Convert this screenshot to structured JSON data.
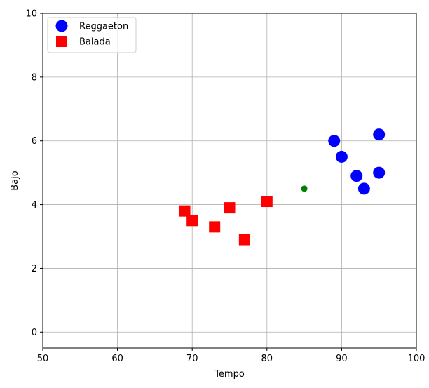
{
  "chart_data": {
    "type": "scatter",
    "title": "",
    "xlabel": "Tempo",
    "ylabel": "Bajo",
    "xlim": [
      50,
      100
    ],
    "ylim": [
      -0.5,
      10
    ],
    "xticks": [
      50,
      60,
      70,
      80,
      90,
      100
    ],
    "yticks": [
      0,
      2,
      4,
      6,
      8,
      10
    ],
    "grid": true,
    "legend_position": "top-left",
    "series": [
      {
        "name": "Reggaeton",
        "marker": "circle",
        "color": "#0000ff",
        "points": [
          {
            "x": 89,
            "y": 6.0
          },
          {
            "x": 90,
            "y": 5.5
          },
          {
            "x": 92,
            "y": 4.9
          },
          {
            "x": 93,
            "y": 4.5
          },
          {
            "x": 95,
            "y": 6.2
          },
          {
            "x": 95,
            "y": 5.0
          }
        ]
      },
      {
        "name": "Balada",
        "marker": "square",
        "color": "#ff0000",
        "points": [
          {
            "x": 69,
            "y": 3.8
          },
          {
            "x": 70,
            "y": 3.5
          },
          {
            "x": 73,
            "y": 3.3
          },
          {
            "x": 75,
            "y": 3.9
          },
          {
            "x": 77,
            "y": 2.9
          },
          {
            "x": 80,
            "y": 4.1
          }
        ]
      },
      {
        "marker": "small-circle",
        "color": "#008000",
        "points": [
          {
            "x": 85,
            "y": 4.5
          }
        ]
      }
    ]
  }
}
